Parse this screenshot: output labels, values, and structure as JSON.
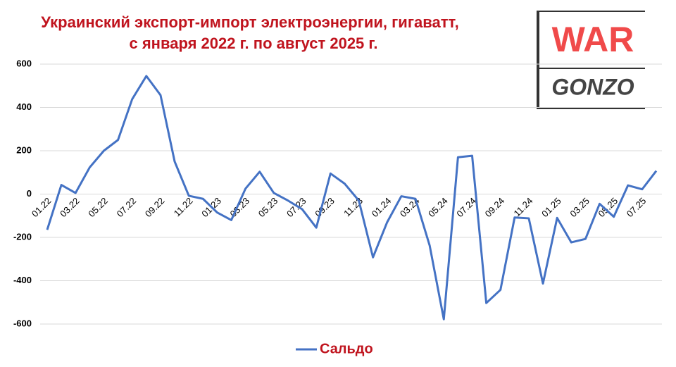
{
  "chart_data": {
    "type": "line",
    "title": [
      "Украинский экспорт-импорт электроэнергии, гигаватт,",
      "с января 2022 г. по август 2025 г."
    ],
    "categories": [
      "01.22",
      null,
      "03.22",
      null,
      "05.22",
      null,
      "07.22",
      null,
      "09.22",
      null,
      "11.22",
      null,
      "01.23",
      null,
      "03.23",
      null,
      "05.23",
      null,
      "07.23",
      null,
      "09.23",
      null,
      "11.23",
      null,
      "01.24",
      null,
      "03.24",
      null,
      "05.24",
      null,
      "07.24",
      null,
      "09.24",
      null,
      "11.24",
      null,
      "01.25",
      null,
      "03.25",
      null,
      "05.25",
      null,
      "07.25",
      null
    ],
    "series": [
      {
        "name": "Сальдо",
        "color": "#4472c4",
        "values": [
          -165,
          42,
          5,
          123,
          200,
          250,
          438,
          545,
          457,
          150,
          -8,
          -22,
          -85,
          -120,
          25,
          103,
          5,
          -30,
          -70,
          -155,
          95,
          48,
          -30,
          -292,
          -130,
          -10,
          -22,
          -237,
          -578,
          170,
          177,
          -503,
          -442,
          -108,
          -112,
          -413,
          -110,
          -223,
          -207,
          -45,
          -105,
          40,
          22,
          107
        ]
      }
    ],
    "ylim": [
      -600,
      600
    ],
    "yticks": [
      -600,
      -400,
      -200,
      0,
      200,
      400,
      600
    ],
    "grid": true,
    "legend": "bottom"
  },
  "logo": {
    "top": "WAR",
    "bottom": "GONZO"
  }
}
